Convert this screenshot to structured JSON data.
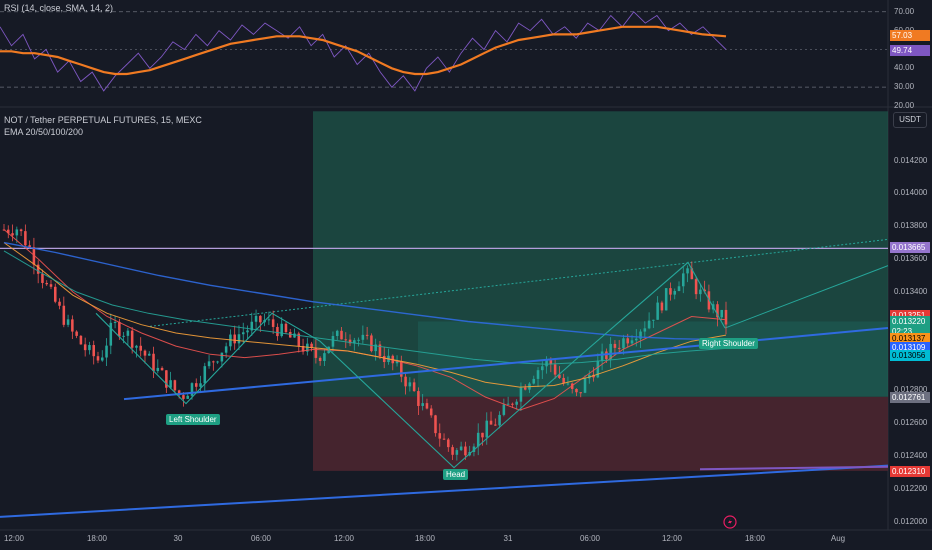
{
  "rsi_header": "RSI (14, close, SMA, 14, 2)",
  "chart_header": {
    "title": "NOT / Tether PERPETUAL FUTURES, 15, MEXC",
    "indicator": "EMA 20/50/100/200"
  },
  "currency_label": "USDT",
  "chart_data": [
    {
      "type": "line",
      "panel": "RSI",
      "y_ticks": [
        "70.00",
        "60.00",
        "50.00",
        "40.00",
        "30.00",
        "20.00"
      ],
      "ylim": [
        20,
        72
      ],
      "series": [
        {
          "values": [
            62,
            52,
            58,
            45,
            50,
            38,
            44,
            33,
            38,
            28,
            36,
            42,
            48,
            40,
            46,
            54,
            50,
            58,
            52,
            60,
            55,
            63,
            58,
            64,
            60,
            56,
            62,
            52,
            58,
            46,
            52,
            42,
            48,
            38,
            30,
            36,
            28,
            40,
            46,
            38,
            48,
            56,
            50,
            60,
            54,
            64,
            60,
            66,
            58,
            62,
            56,
            64,
            60,
            68,
            62,
            70,
            64,
            68,
            60,
            64,
            58,
            62,
            56,
            50
          ]
        },
        {
          "values": [
            49,
            49,
            48,
            48,
            47,
            46,
            44,
            42,
            40,
            38,
            37,
            37,
            38,
            39,
            41,
            43,
            45,
            47,
            49,
            51,
            53,
            54,
            55,
            56,
            57,
            57,
            57,
            56,
            55,
            53,
            51,
            49,
            46,
            43,
            40,
            38,
            37,
            37,
            38,
            40,
            42,
            45,
            48,
            51,
            53,
            55,
            56,
            57,
            58,
            58,
            58,
            59,
            60,
            61,
            62,
            62,
            62,
            62,
            61,
            60,
            59,
            58,
            57.5,
            57
          ]
        }
      ],
      "value_badges": [
        "57.03",
        "49.74"
      ]
    },
    {
      "type": "candlestick",
      "panel": "Price",
      "y_ticks": [
        "0.014200",
        "0.014000",
        "0.013800",
        "0.013600",
        "0.013400",
        "0.012800",
        "0.012600",
        "0.012400",
        "0.012200",
        "0.012000"
      ],
      "ylim": [
        0.01195,
        0.01452
      ],
      "x_ticks": [
        "12:00",
        "18:00",
        "30",
        "06:00",
        "12:00",
        "18:00",
        "31",
        "06:00",
        "12:00",
        "18:00",
        "Aug"
      ],
      "close_path": [
        0.01378,
        0.01379,
        0.01365,
        0.01345,
        0.0133,
        0.01315,
        0.01305,
        0.01298,
        0.0132,
        0.01315,
        0.01305,
        0.01295,
        0.01285,
        0.01276,
        0.01285,
        0.01295,
        0.01305,
        0.01313,
        0.01318,
        0.01323,
        0.01318,
        0.01312,
        0.01306,
        0.013,
        0.0131,
        0.01315,
        0.01311,
        0.01308,
        0.013,
        0.01292,
        0.0128,
        0.01266,
        0.01252,
        0.01242,
        0.01246,
        0.01254,
        0.0126,
        0.0127,
        0.01282,
        0.01292,
        0.01298,
        0.01285,
        0.01276,
        0.0129,
        0.013,
        0.01308,
        0.01314,
        0.0132,
        0.0133,
        0.01342,
        0.01352,
        0.0134,
        0.0133,
        0.01322
      ],
      "ema_lines": [
        {
          "values": [
            0.01378,
            0.0136,
            0.0134,
            0.01325,
            0.01315,
            0.01307,
            0.01302,
            0.013,
            0.01302,
            0.01305,
            0.01304,
            0.013,
            0.01295,
            0.01288,
            0.01276,
            0.01268,
            0.01275,
            0.0129,
            0.01305,
            0.01315,
            0.01325,
            0.01323
          ]
        },
        {
          "values": [
            0.0137,
            0.01355,
            0.01338,
            0.01327,
            0.0132,
            0.01315,
            0.01312,
            0.0131,
            0.01308,
            0.01306,
            0.01304,
            0.013,
            0.01296,
            0.01291,
            0.01285,
            0.01282,
            0.01283,
            0.01288,
            0.01295,
            0.01303,
            0.0131,
            0.013137
          ]
        },
        {
          "values": [
            0.01365,
            0.01352,
            0.0134,
            0.01332,
            0.01327,
            0.01323,
            0.0132,
            0.01317,
            0.01314,
            0.01311,
            0.01308,
            0.01305,
            0.01302,
            0.01299,
            0.01297,
            0.01296,
            0.01297,
            0.01299,
            0.01302,
            0.01304,
            0.013056
          ]
        },
        {
          "values": [
            0.0137,
            0.01364,
            0.01357,
            0.0135,
            0.01344,
            0.01339,
            0.01334,
            0.0133,
            0.01326,
            0.01322,
            0.01319,
            0.01316,
            0.01313,
            0.013115,
            0.013109
          ]
        }
      ],
      "price_badges": [
        "0.013665",
        "0.013251",
        "0.013220",
        "02:23",
        "0.013137",
        "0.013109",
        "0.013056",
        "0.012761",
        "0.012310"
      ],
      "annotations": [
        "Left Shoulder",
        "Head",
        "Right Shoulder"
      ]
    }
  ],
  "colors": {
    "up": "#26a69a",
    "down": "#ef5350",
    "rsi": "#7e57c2",
    "rsi_ma": "#f07a22",
    "trend": "#2f6ae0",
    "neckline": "#26a69a",
    "resistance": "#b39ddb",
    "profit_zone": "#1e5448",
    "loss_zone": "#4a2630"
  }
}
